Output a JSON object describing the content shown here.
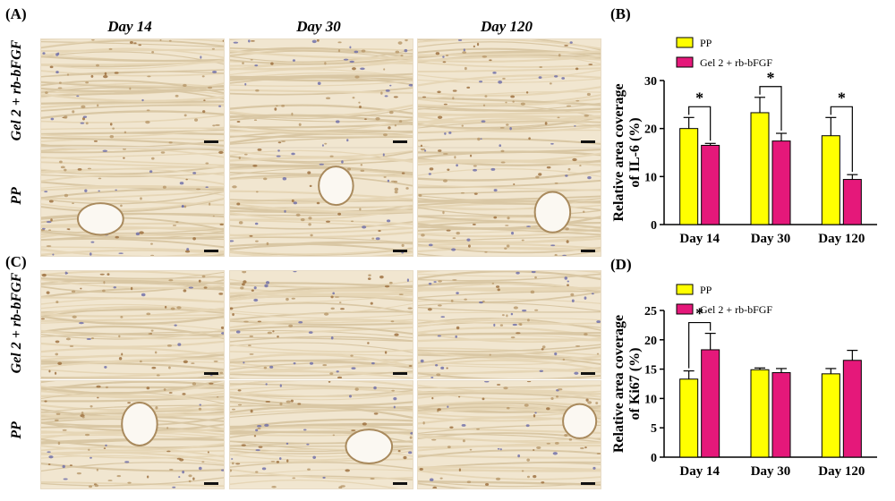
{
  "panels": {
    "A": "(A)",
    "B": "(B)",
    "C": "(C)",
    "D": "(D)"
  },
  "columns": [
    "Day 14",
    "Day 30",
    "Day 120"
  ],
  "rows": [
    "Gel 2 + rb-bFGF",
    "PP"
  ],
  "colors": {
    "pp": "#ffff00",
    "gel": "#e5187a",
    "tissue": "#f1e6d0"
  },
  "chart_data": [
    {
      "type": "bar",
      "panel": "(B)",
      "categories": [
        "Day 14",
        "Day 30",
        "Day 120"
      ],
      "series": [
        {
          "name": "PP",
          "values": [
            20,
            23.3,
            18.5
          ],
          "errors": [
            2.3,
            3.2,
            3.8
          ]
        },
        {
          "name": "Gel 2 + rb-bFGF",
          "values": [
            16.5,
            17.4,
            9.4
          ],
          "errors": [
            0.4,
            1.6,
            1.0
          ]
        }
      ],
      "ylabel": "Relative area coverage of IL-6 (%)",
      "ylim": [
        0,
        30
      ],
      "yticks": [
        0,
        10,
        20,
        30
      ],
      "significance": [
        "*",
        "*",
        "*"
      ],
      "legend": "top"
    },
    {
      "type": "bar",
      "panel": "(D)",
      "categories": [
        "Day 14",
        "Day 30",
        "Day 120"
      ],
      "series": [
        {
          "name": "PP",
          "values": [
            13.3,
            14.9,
            14.2
          ],
          "errors": [
            1.4,
            0.3,
            0.9
          ]
        },
        {
          "name": "Gel 2 + rb-bFGF",
          "values": [
            18.3,
            14.4,
            16.5
          ],
          "errors": [
            2.8,
            0.7,
            1.7
          ]
        }
      ],
      "ylabel": "Relative area coverage of Ki67 (%)",
      "ylim": [
        0,
        25
      ],
      "yticks": [
        0,
        5,
        10,
        15,
        20,
        25
      ],
      "significance": [
        "*",
        "",
        ""
      ],
      "legend": "top"
    }
  ]
}
